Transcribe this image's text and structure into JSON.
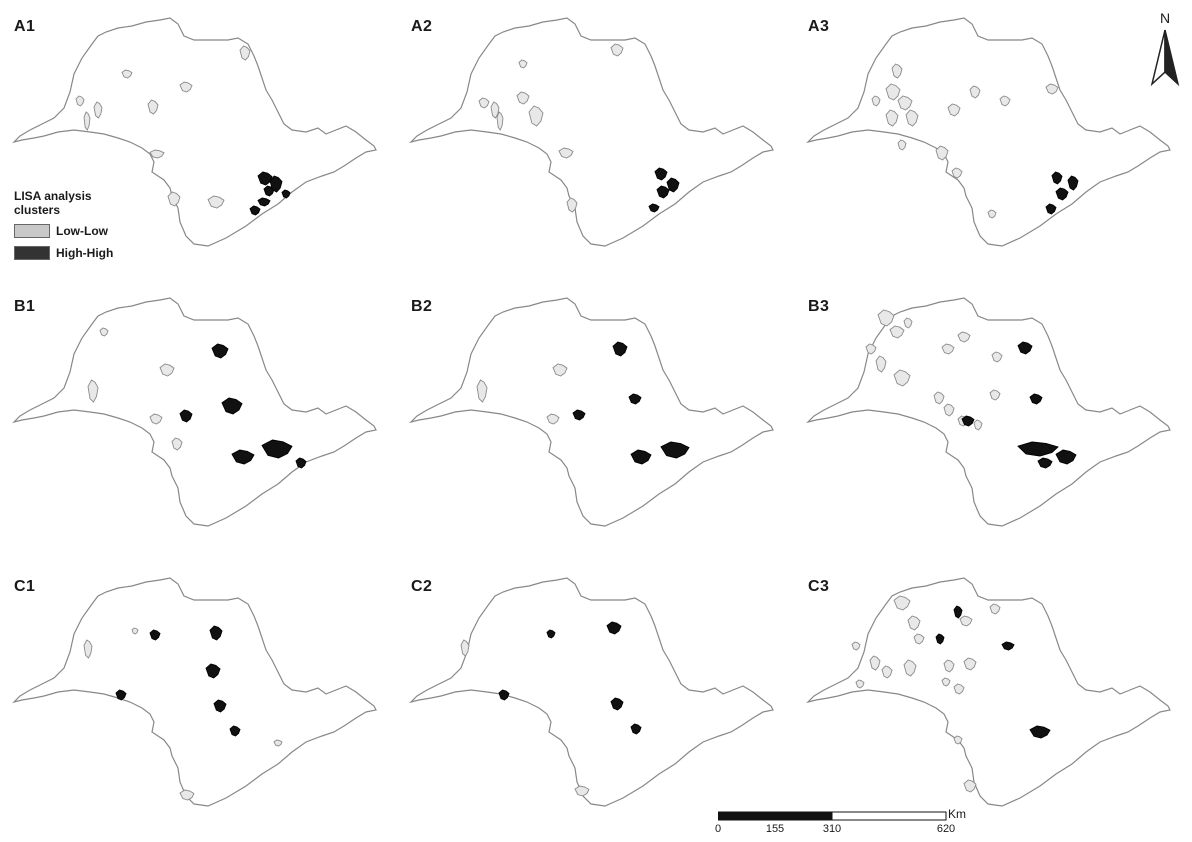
{
  "panels": [
    {
      "label": "A1",
      "hh": [
        [
          258,
          172,
          14,
          13
        ],
        [
          264,
          186,
          10,
          10
        ],
        [
          258,
          198,
          12,
          8
        ],
        [
          250,
          206,
          10,
          9
        ],
        [
          270,
          176,
          12,
          16
        ],
        [
          282,
          190,
          8,
          8
        ]
      ],
      "ll": [
        [
          76,
          96,
          8,
          10
        ],
        [
          94,
          102,
          8,
          16
        ],
        [
          84,
          112,
          6,
          18
        ],
        [
          122,
          70,
          10,
          8
        ],
        [
          148,
          100,
          10,
          14
        ],
        [
          180,
          82,
          12,
          10
        ],
        [
          150,
          150,
          14,
          8
        ],
        [
          208,
          196,
          16,
          12
        ],
        [
          168,
          192,
          12,
          14
        ],
        [
          240,
          46,
          10,
          14
        ]
      ]
    },
    {
      "label": "A2",
      "hh": [
        [
          258,
          168,
          12,
          12
        ],
        [
          260,
          186,
          12,
          12
        ],
        [
          252,
          204,
          10,
          8
        ],
        [
          270,
          178,
          12,
          14
        ]
      ],
      "ll": [
        [
          82,
          98,
          10,
          10
        ],
        [
          94,
          102,
          8,
          16
        ],
        [
          100,
          112,
          6,
          18
        ],
        [
          120,
          92,
          12,
          12
        ],
        [
          132,
          106,
          14,
          20
        ],
        [
          214,
          44,
          12,
          12
        ],
        [
          162,
          148,
          14,
          10
        ],
        [
          170,
          198,
          10,
          14
        ],
        [
          122,
          60,
          8,
          8
        ]
      ]
    },
    {
      "label": "A3",
      "hh": [
        [
          258,
          172,
          10,
          12
        ],
        [
          262,
          188,
          12,
          12
        ],
        [
          252,
          204,
          10,
          10
        ],
        [
          274,
          176,
          10,
          14
        ]
      ],
      "ll": [
        [
          98,
          64,
          10,
          14
        ],
        [
          92,
          84,
          14,
          16
        ],
        [
          104,
          96,
          14,
          14
        ],
        [
          112,
          110,
          12,
          16
        ],
        [
          92,
          110,
          12,
          16
        ],
        [
          78,
          96,
          8,
          10
        ],
        [
          154,
          104,
          12,
          12
        ],
        [
          176,
          86,
          10,
          12
        ],
        [
          142,
          146,
          12,
          14
        ],
        [
          158,
          168,
          10,
          10
        ],
        [
          206,
          96,
          10,
          10
        ],
        [
          252,
          84,
          12,
          10
        ],
        [
          194,
          210,
          8,
          8
        ],
        [
          104,
          140,
          8,
          10
        ]
      ]
    },
    {
      "label": "B1",
      "hh": [
        [
          212,
          64,
          16,
          14
        ],
        [
          222,
          118,
          20,
          16
        ],
        [
          180,
          130,
          12,
          12
        ],
        [
          232,
          170,
          22,
          14
        ],
        [
          262,
          160,
          30,
          18
        ],
        [
          296,
          178,
          10,
          10
        ]
      ],
      "ll": [
        [
          160,
          84,
          14,
          12
        ],
        [
          88,
          100,
          10,
          22
        ],
        [
          150,
          134,
          12,
          10
        ],
        [
          172,
          158,
          10,
          12
        ],
        [
          100,
          48,
          8,
          8
        ]
      ]
    },
    {
      "label": "B2",
      "hh": [
        [
          216,
          62,
          14,
          14
        ],
        [
          232,
          114,
          12,
          10
        ],
        [
          176,
          130,
          12,
          10
        ],
        [
          234,
          170,
          20,
          14
        ],
        [
          264,
          162,
          28,
          16
        ]
      ],
      "ll": [
        [
          156,
          84,
          14,
          12
        ],
        [
          80,
          100,
          10,
          22
        ],
        [
          150,
          134,
          12,
          10
        ]
      ]
    },
    {
      "label": "B3",
      "hh": [
        [
          224,
          62,
          14,
          12
        ],
        [
          236,
          114,
          12,
          10
        ],
        [
          168,
          136,
          12,
          10
        ],
        [
          224,
          162,
          40,
          14
        ],
        [
          262,
          170,
          20,
          14
        ],
        [
          244,
          178,
          14,
          10
        ]
      ],
      "ll": [
        [
          84,
          30,
          16,
          16
        ],
        [
          96,
          46,
          14,
          12
        ],
        [
          72,
          64,
          10,
          10
        ],
        [
          82,
          76,
          10,
          16
        ],
        [
          100,
          90,
          16,
          16
        ],
        [
          148,
          64,
          12,
          10
        ],
        [
          164,
          52,
          12,
          10
        ],
        [
          140,
          112,
          10,
          12
        ],
        [
          150,
          124,
          10,
          12
        ],
        [
          164,
          136,
          10,
          10
        ],
        [
          180,
          140,
          8,
          10
        ],
        [
          198,
          72,
          10,
          10
        ],
        [
          196,
          110,
          10,
          10
        ],
        [
          110,
          38,
          8,
          10
        ]
      ]
    },
    {
      "label": "C1",
      "hh": [
        [
          150,
          70,
          10,
          10
        ],
        [
          210,
          66,
          12,
          14
        ],
        [
          206,
          104,
          14,
          14
        ],
        [
          116,
          130,
          10,
          10
        ],
        [
          214,
          140,
          12,
          12
        ],
        [
          230,
          166,
          10,
          10
        ]
      ],
      "ll": [
        [
          84,
          80,
          8,
          18
        ],
        [
          274,
          180,
          8,
          6
        ],
        [
          180,
          230,
          14,
          10
        ],
        [
          132,
          68,
          6,
          6
        ]
      ]
    },
    {
      "label": "C2",
      "hh": [
        [
          150,
          70,
          8,
          8
        ],
        [
          210,
          62,
          14,
          12
        ],
        [
          102,
          130,
          10,
          10
        ],
        [
          214,
          138,
          12,
          12
        ],
        [
          234,
          164,
          10,
          10
        ]
      ],
      "ll": [
        [
          64,
          80,
          8,
          16
        ],
        [
          178,
          226,
          14,
          10
        ]
      ]
    },
    {
      "label": "C3",
      "hh": [
        [
          142,
          74,
          8,
          10
        ],
        [
          208,
          82,
          12,
          8
        ],
        [
          160,
          46,
          8,
          12
        ],
        [
          236,
          166,
          20,
          12
        ]
      ],
      "ll": [
        [
          100,
          36,
          16,
          14
        ],
        [
          114,
          56,
          12,
          14
        ],
        [
          120,
          74,
          10,
          10
        ],
        [
          76,
          96,
          10,
          14
        ],
        [
          88,
          106,
          10,
          12
        ],
        [
          110,
          100,
          12,
          16
        ],
        [
          150,
          100,
          10,
          12
        ],
        [
          170,
          98,
          12,
          12
        ],
        [
          166,
          56,
          12,
          10
        ],
        [
          196,
          44,
          10,
          10
        ],
        [
          148,
          118,
          8,
          8
        ],
        [
          160,
          124,
          10,
          10
        ],
        [
          58,
          82,
          8,
          8
        ],
        [
          62,
          120,
          8,
          8
        ],
        [
          160,
          176,
          8,
          8
        ],
        [
          170,
          220,
          12,
          12
        ]
      ]
    }
  ],
  "legend": {
    "title": "LISA analysis clusters",
    "items": [
      {
        "label": "Low-Low",
        "color": "#cccccc"
      },
      {
        "label": "High-High",
        "color": "#333333"
      }
    ]
  },
  "north_arrow": {
    "label": "N"
  },
  "scale_bar": {
    "unit": "Km",
    "ticks": [
      "0",
      "155",
      "310",
      "620"
    ]
  },
  "colors": {
    "outline": "#888888",
    "high_high": "#111111",
    "low_low": "#e8e8e8",
    "low_low_stroke": "#8a8a8a"
  }
}
